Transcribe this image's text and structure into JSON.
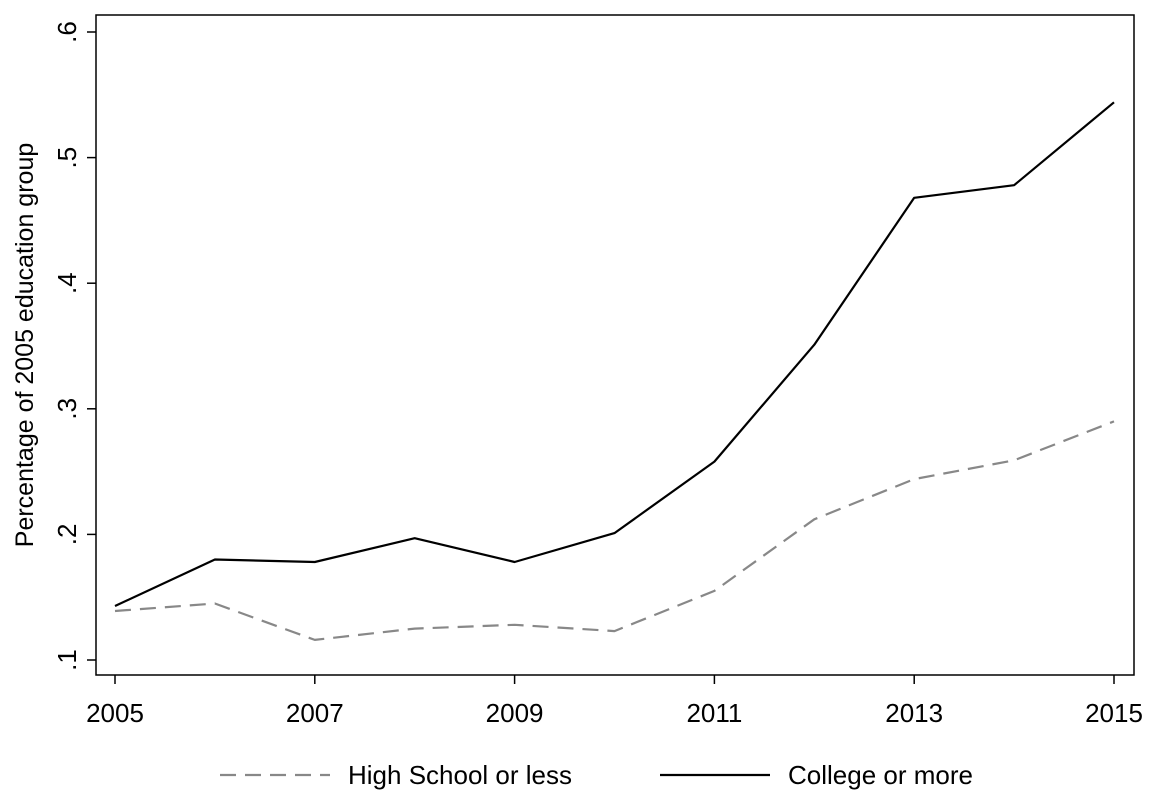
{
  "chart_data": {
    "type": "line",
    "x": [
      2005,
      2006,
      2007,
      2008,
      2009,
      2010,
      2011,
      2012,
      2013,
      2014,
      2015
    ],
    "series": [
      {
        "name": "High School or less",
        "style": "dashed",
        "color": "#888888",
        "values": [
          0.139,
          0.145,
          0.116,
          0.125,
          0.128,
          0.123,
          0.155,
          0.212,
          0.244,
          0.259,
          0.29
        ]
      },
      {
        "name": "College or more",
        "style": "solid",
        "color": "#000000",
        "values": [
          0.143,
          0.18,
          0.178,
          0.197,
          0.178,
          0.201,
          0.258,
          0.351,
          0.468,
          0.478,
          0.544
        ]
      }
    ],
    "xlabel": "",
    "ylabel": "Percentage of 2005 education group",
    "xlim": [
      2005,
      2015
    ],
    "ylim": [
      0.1,
      0.6
    ],
    "xticks": [
      2005,
      2007,
      2009,
      2011,
      2013,
      2015
    ],
    "xtick_labels": [
      "2005",
      "2007",
      "2009",
      "2011",
      "2013",
      "2015"
    ],
    "yticks": [
      0.1,
      0.2,
      0.3,
      0.4,
      0.5,
      0.6
    ],
    "ytick_labels": [
      ".1",
      ".2",
      ".3",
      ".4",
      ".5",
      ".6"
    ],
    "grid": false,
    "legend_position": "bottom"
  }
}
